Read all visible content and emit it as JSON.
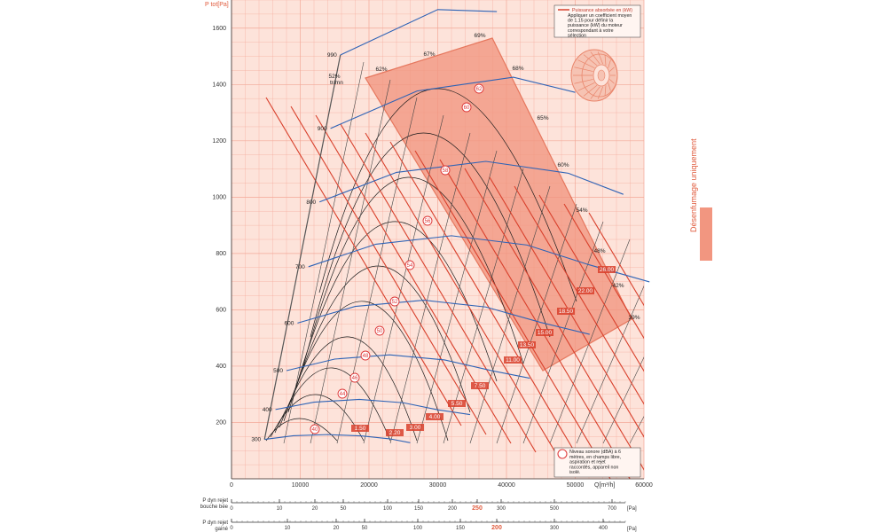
{
  "chart_data": {
    "type": "line",
    "title": "",
    "xlabel": "Q[m³/h]",
    "ylabel": "P tot[Pa]",
    "xlim": [
      0,
      60000
    ],
    "ylim": [
      0,
      1700
    ],
    "x_ticks": [
      0,
      10000,
      20000,
      30000,
      40000,
      50000,
      60000
    ],
    "y_ticks": [
      200,
      400,
      600,
      800,
      1000,
      1200,
      1400,
      1600
    ],
    "grid": true,
    "speed_curves_label": "tr/mn",
    "speed_curves": [
      {
        "rpm": "300",
        "points": [
          [
            4800,
            140
          ],
          [
            9000,
            153
          ],
          [
            14000,
            157
          ],
          [
            19000,
            152
          ],
          [
            23000,
            142
          ],
          [
            26000,
            128
          ]
        ]
      },
      {
        "rpm": "400",
        "points": [
          [
            6400,
            246
          ],
          [
            12000,
            272
          ],
          [
            18600,
            282
          ],
          [
            25000,
            270
          ],
          [
            30000,
            245
          ],
          [
            34700,
            228
          ]
        ]
      },
      {
        "rpm": "500",
        "points": [
          [
            8000,
            384
          ],
          [
            15000,
            425
          ],
          [
            23000,
            440
          ],
          [
            31000,
            422
          ],
          [
            38000,
            383
          ],
          [
            43400,
            357
          ]
        ]
      },
      {
        "rpm": "600",
        "points": [
          [
            9600,
            553
          ],
          [
            18000,
            612
          ],
          [
            28000,
            634
          ],
          [
            37000,
            610
          ],
          [
            45000,
            555
          ],
          [
            52100,
            513
          ]
        ]
      },
      {
        "rpm": "700",
        "points": [
          [
            11200,
            753
          ],
          [
            21000,
            833
          ],
          [
            32000,
            863
          ],
          [
            43000,
            830
          ],
          [
            52000,
            760
          ],
          [
            60800,
            699
          ]
        ]
      },
      {
        "rpm": "800",
        "points": [
          [
            12800,
            983
          ],
          [
            24000,
            1088
          ],
          [
            37000,
            1127
          ],
          [
            49000,
            1085
          ],
          [
            57000,
            1010
          ]
        ]
      },
      {
        "rpm": "900",
        "points": [
          [
            14400,
            1244
          ],
          [
            27000,
            1377
          ],
          [
            41000,
            1426
          ],
          [
            50000,
            1372
          ]
        ]
      },
      {
        "rpm": "990",
        "points": [
          [
            15840,
            1505
          ],
          [
            30000,
            1666
          ],
          [
            38600,
            1659
          ]
        ]
      }
    ],
    "efficiency_labels": [
      "52%",
      "62%",
      "67%",
      "69%",
      "68%",
      "65%",
      "60%",
      "54%",
      "48%",
      "42%",
      "39%"
    ],
    "power_labels_kW": [
      "1.50",
      "2.20",
      "3.00",
      "4.00",
      "5.50",
      "7.50",
      "11.00",
      "13.50",
      "15.00",
      "18.50",
      "22.00",
      "26.00"
    ],
    "sound_levels_dBA": [
      "40",
      "44",
      "46",
      "48",
      "50",
      "52",
      "54",
      "56",
      "58",
      "60",
      "62"
    ],
    "legend": {
      "power_title": "Puissance absorbée en (kW)",
      "power_note": "Appliquer un coefficient moyen de 1.15 pour définir la puissance (kW) du moteur correspondant à votre sélection",
      "sound_note": "Niveau sonore (dBA) à 6 mètres, en champs libre, aspiration et rejet raccordés, appareil non isolé."
    },
    "side_label": "Désenfumage uniquement",
    "zone": "Désenfumage uniquement",
    "dynamic_scales": [
      {
        "label_line1": "P dyn rejet",
        "label_line2": "bouche bée",
        "unit": "[Pa]",
        "ticks": [
          "0",
          "10",
          "20",
          "50",
          "100",
          "150",
          "200",
          "250",
          "300",
          "500",
          "700"
        ],
        "highlight": "250"
      },
      {
        "label_line1": "P dyn rejet",
        "label_line2": "gainé",
        "unit": "[Pa]",
        "ticks": [
          "0",
          "10",
          "20",
          "50",
          "100",
          "150",
          "200",
          "300",
          "400"
        ],
        "highlight": "200"
      }
    ],
    "colors": {
      "plot_bg": "#fde3da",
      "grid": "#f3a898",
      "accent": "#e05a3c",
      "zone_fill": "#f29680",
      "speed_curve": "#2e63b6",
      "efficiency_curve": "#1a1a1a",
      "power_line": "#d8402c"
    }
  }
}
